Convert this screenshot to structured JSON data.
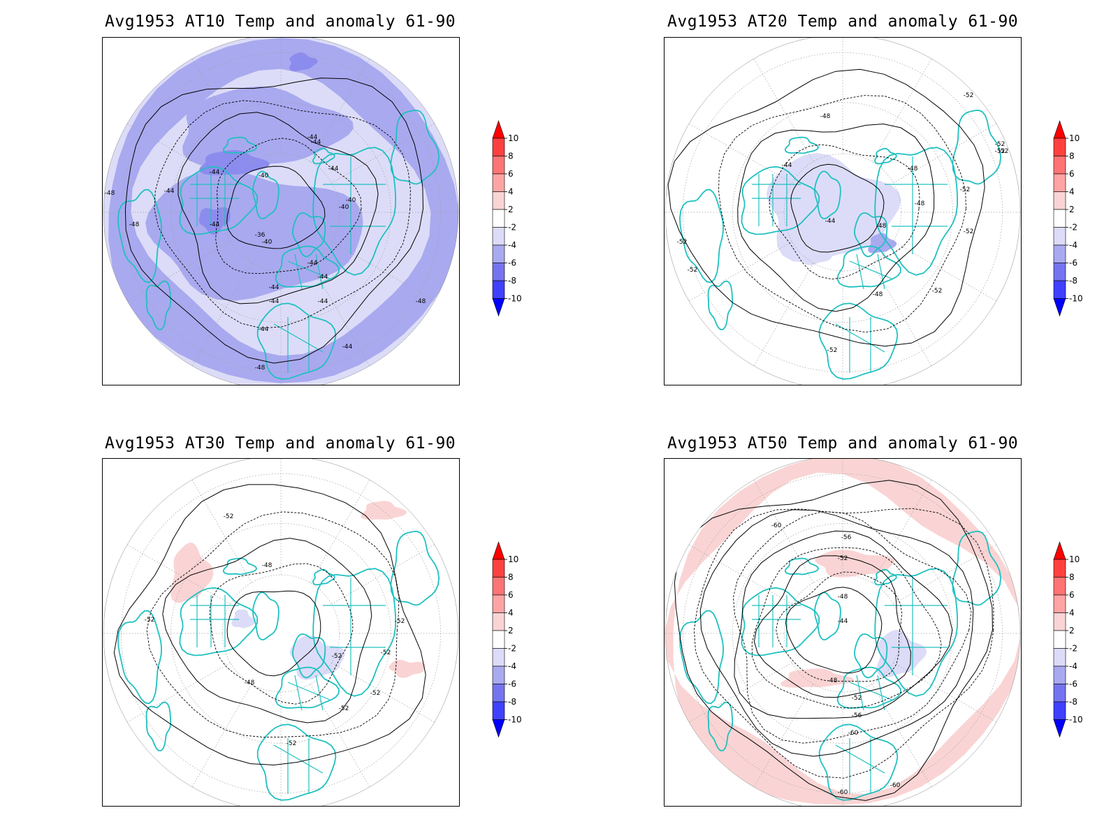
{
  "panels": [
    {
      "id": "at10",
      "title": "Avg1953 AT10 Temp and anomaly 61-90",
      "base_fill": "#dcdcf8",
      "anomaly_regions": [
        {
          "kind": "negative",
          "color": "#a9a9f0"
        },
        {
          "kind": "negative",
          "color": "#8c8cee"
        }
      ],
      "contour_labels": [
        "-44",
        "-44",
        "-44",
        "-40",
        "-40",
        "-44",
        "-40",
        "-36",
        "-40",
        "-44",
        "-44",
        "-44",
        "-44",
        "-44",
        "-44",
        "-44",
        "-48",
        "-48",
        "-48",
        "-44",
        "-44",
        "-48"
      ]
    },
    {
      "id": "at20",
      "title": "Avg1953 AT20 Temp and anomaly 61-90",
      "base_fill": "#ffffff",
      "anomaly_regions": [
        {
          "kind": "negative",
          "color": "#dcdcf8"
        },
        {
          "kind": "negative",
          "color": "#a9a9f0"
        }
      ],
      "contour_labels": [
        "-52",
        "-48",
        "-44",
        "-48",
        "-52",
        "-52",
        "-52",
        "-48",
        "-44",
        "-48",
        "-52",
        "-52",
        "-52",
        "-48",
        "-52",
        "-52",
        "-52"
      ]
    },
    {
      "id": "at30",
      "title": "Avg1953 AT30 Temp and anomaly 61-90",
      "base_fill": "#ffffff",
      "anomaly_regions": [
        {
          "kind": "positive",
          "color": "#fad4d4"
        },
        {
          "kind": "negative",
          "color": "#dcdcf8"
        }
      ],
      "contour_labels": [
        "-52",
        "-48",
        "-52",
        "-52",
        "-52",
        "-48",
        "-52",
        "-52",
        "-52",
        "-52"
      ]
    },
    {
      "id": "at50",
      "title": "Avg1953 AT50 Temp and anomaly 61-90",
      "base_fill": "#ffffff",
      "anomaly_regions": [
        {
          "kind": "positive",
          "color": "#fad4d4"
        },
        {
          "kind": "negative",
          "color": "#dcdcf8"
        }
      ],
      "contour_labels": [
        "-60",
        "-56",
        "-52",
        "-48",
        "-44",
        "-48",
        "-52",
        "-56",
        "-60",
        "-60",
        "-60"
      ]
    }
  ],
  "colorbar": {
    "labels": [
      "10",
      "8",
      "6",
      "4",
      "2",
      "-2",
      "-4",
      "-6",
      "-8",
      "-10"
    ],
    "colors": [
      "#ff0000",
      "#ff4040",
      "#ff7474",
      "#ffa4a4",
      "#fad4d4",
      "#ffffff",
      "#dcdcf8",
      "#a9a9f0",
      "#7474f0",
      "#4040ff",
      "#0000ff"
    ]
  },
  "colors": {
    "coastline": "#20c0c0",
    "contour": "#000000",
    "grid": "#a0a0a0"
  }
}
